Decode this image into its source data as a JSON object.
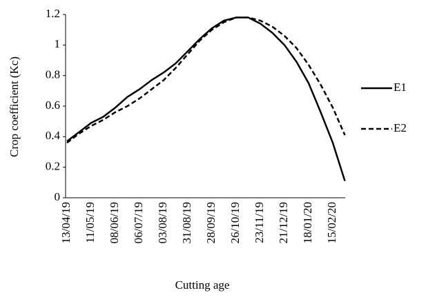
{
  "chart_data": {
    "type": "line",
    "x_label": "Cutting age",
    "y_label": "Crop coefficient (Kc)",
    "categories": [
      "13/04/19",
      null,
      "11/05/19",
      null,
      "08/06/19",
      null,
      "06/07/19",
      null,
      "03/08/19",
      null,
      "31/08/19",
      null,
      "28/09/19",
      null,
      "26/10/19",
      null,
      "23/11/19",
      null,
      "21/12/19",
      null,
      "18/01/20",
      null,
      "15/02/20",
      null
    ],
    "series": [
      {
        "name": "E1",
        "color": "#000000",
        "line_style": "solid",
        "values": [
          0.37,
          0.43,
          0.49,
          0.53,
          0.59,
          0.66,
          0.71,
          0.77,
          0.82,
          0.88,
          0.96,
          1.04,
          1.11,
          1.16,
          1.18,
          1.18,
          1.14,
          1.08,
          1.0,
          0.89,
          0.75,
          0.56,
          0.36,
          0.11
        ]
      },
      {
        "name": "E2",
        "color": "#000000",
        "line_style": "dashed",
        "values": [
          0.36,
          0.42,
          0.47,
          0.51,
          0.56,
          0.6,
          0.65,
          0.71,
          0.77,
          0.85,
          0.94,
          1.03,
          1.1,
          1.15,
          1.18,
          1.18,
          1.16,
          1.12,
          1.06,
          0.98,
          0.87,
          0.74,
          0.59,
          0.41
        ]
      }
    ],
    "ylim": [
      0,
      1.2
    ],
    "yticks": [
      0,
      0.2,
      0.4,
      0.6,
      0.8,
      1,
      1.2
    ],
    "grid": false,
    "legend": "right"
  }
}
